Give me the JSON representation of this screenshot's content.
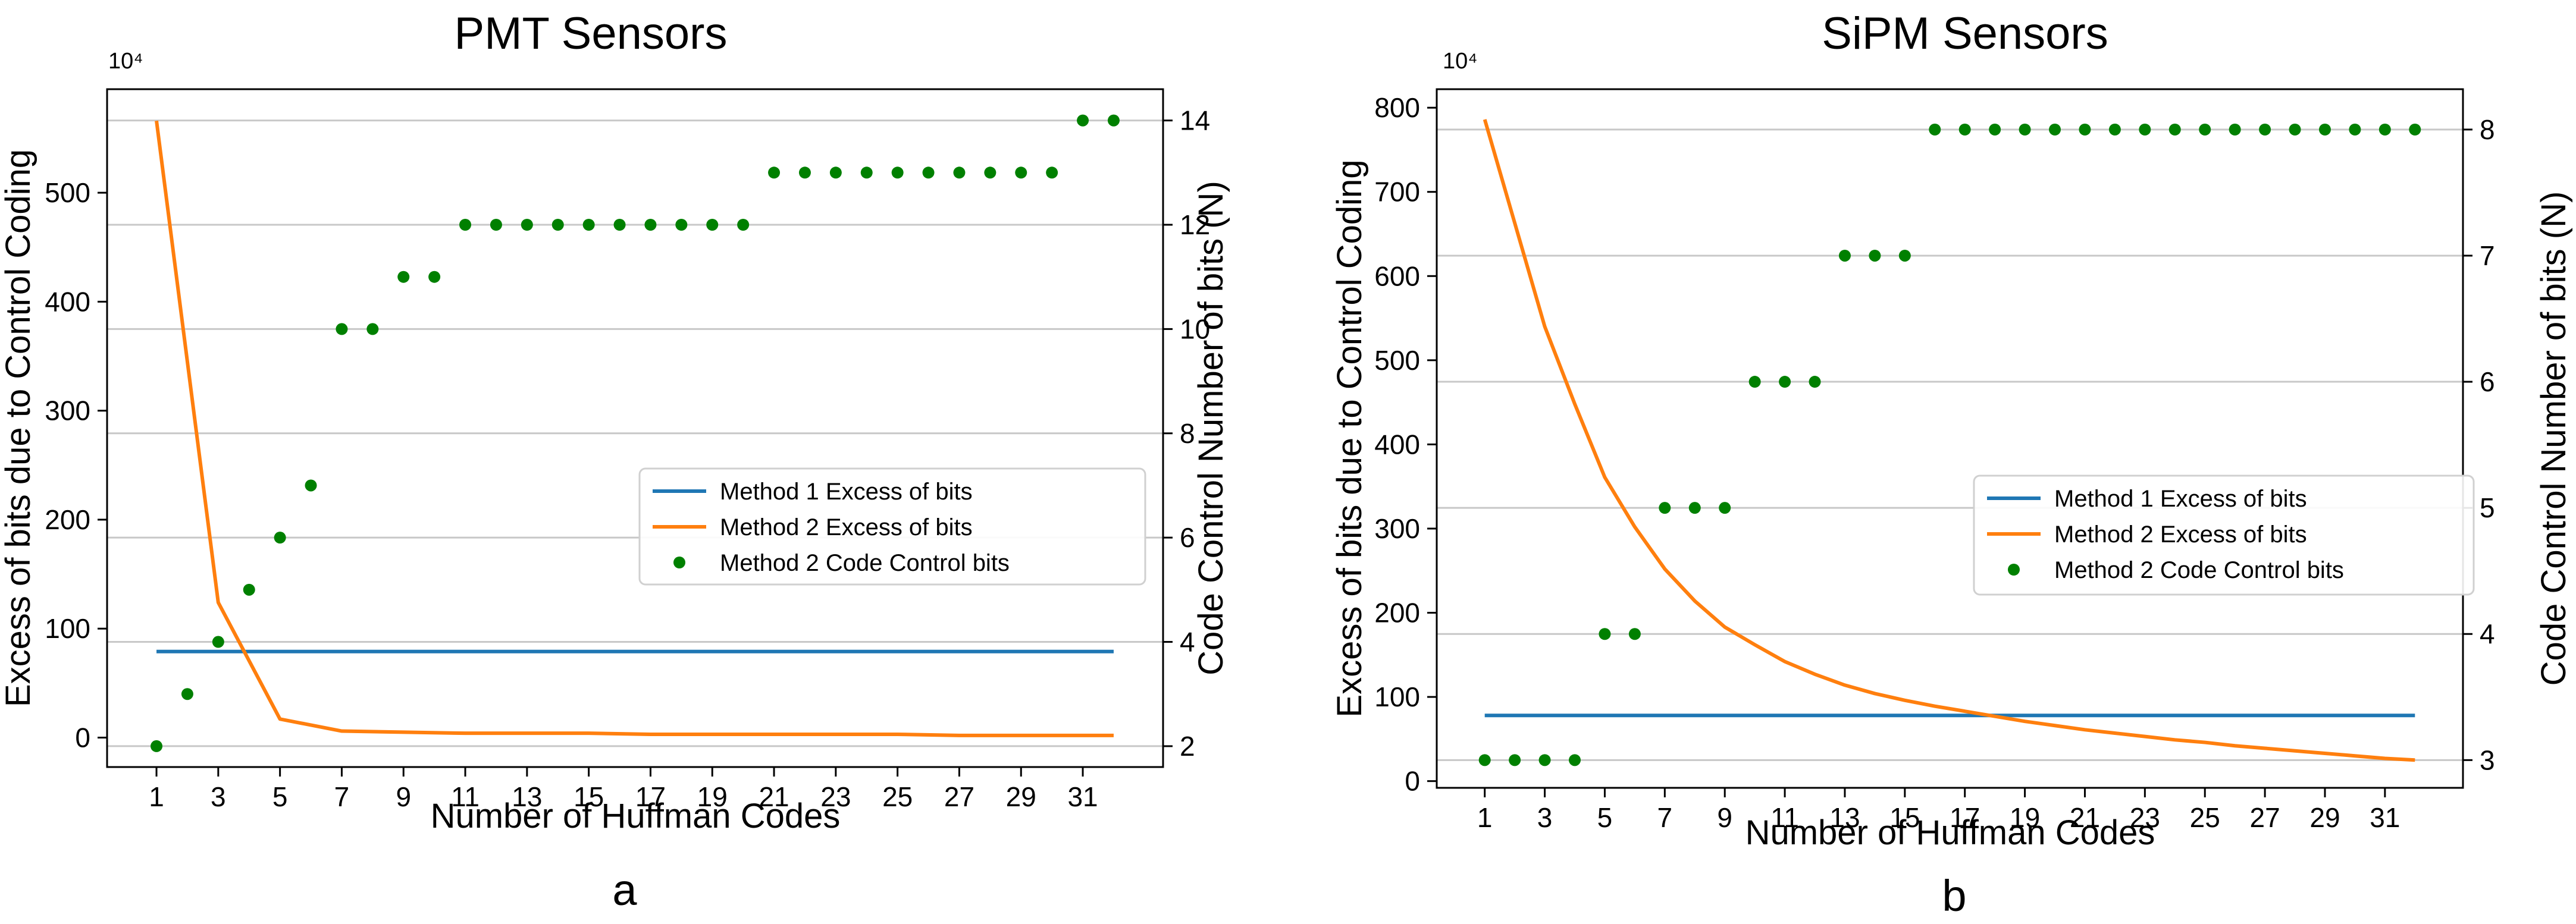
{
  "chart_data": [
    {
      "type": "line",
      "title": "PMT Sensors",
      "sublabel": "a",
      "xlabel": "Number of Huffman Codes",
      "ylabel": "Excess of bits due to Control Coding",
      "y2label": "Code Control Number of bits (N)",
      "y_multiplier": "10⁴",
      "xlim": [
        -0.6,
        33.6
      ],
      "ylim": [
        -27,
        595
      ],
      "y2lim": [
        1.6,
        14.6
      ],
      "xticks": [
        1,
        3,
        5,
        7,
        9,
        11,
        13,
        15,
        17,
        19,
        21,
        23,
        25,
        27,
        29,
        31
      ],
      "yticks": [
        0,
        100,
        200,
        300,
        400,
        500
      ],
      "y2ticks": [
        2,
        4,
        6,
        8,
        10,
        12,
        14
      ],
      "grid": "horizontal gridlines on secondary axis",
      "legend_position": "center-right",
      "series": [
        {
          "name": "Method 1 Excess of bits",
          "axis": "left",
          "style": "line",
          "color": "#1f77b4",
          "x": [
            1,
            32
          ],
          "y": [
            79,
            79
          ]
        },
        {
          "name": "Method 2 Excess of bits",
          "axis": "left",
          "style": "line",
          "color": "#ff7f0e",
          "x": [
            1,
            3,
            5,
            7,
            9,
            11,
            13,
            15,
            17,
            19,
            21,
            23,
            25,
            27,
            29,
            31,
            32
          ],
          "y": [
            566,
            124,
            17,
            6,
            5,
            4,
            4,
            4,
            3,
            3,
            3,
            3,
            3,
            2,
            2,
            2,
            2
          ]
        },
        {
          "name": "Method 2 Code Control bits",
          "axis": "right",
          "style": "scatter",
          "color": "#008000",
          "x": [
            1,
            2,
            3,
            4,
            5,
            6,
            7,
            8,
            9,
            10,
            11,
            12,
            13,
            14,
            15,
            16,
            17,
            18,
            19,
            20,
            21,
            22,
            23,
            24,
            25,
            26,
            27,
            28,
            29,
            30,
            31,
            32
          ],
          "y": [
            2,
            3,
            4,
            5,
            6,
            7,
            10,
            10,
            11,
            11,
            12,
            12,
            12,
            12,
            12,
            12,
            12,
            12,
            12,
            12,
            13,
            13,
            13,
            13,
            13,
            13,
            13,
            13,
            13,
            13,
            14,
            14
          ]
        }
      ]
    },
    {
      "type": "line",
      "title": "SiPM Sensors",
      "sublabel": "b",
      "xlabel": "Number of Huffman Codes",
      "ylabel": "Excess of bits due to Control Coding",
      "y2label": "Code Control Number of bits (N)",
      "y_multiplier": "10⁴",
      "xlim": [
        -0.6,
        33.6
      ],
      "ylim": [
        -8,
        822
      ],
      "y2lim": [
        2.78,
        8.32
      ],
      "xticks": [
        1,
        3,
        5,
        7,
        9,
        11,
        13,
        15,
        17,
        19,
        21,
        23,
        25,
        27,
        29,
        31
      ],
      "yticks": [
        0,
        100,
        200,
        300,
        400,
        500,
        600,
        700,
        800
      ],
      "y2ticks": [
        3,
        4,
        5,
        6,
        7,
        8
      ],
      "grid": "horizontal gridlines on secondary axis",
      "legend_position": "center-right",
      "series": [
        {
          "name": "Method 1 Excess of bits",
          "axis": "left",
          "style": "line",
          "color": "#1f77b4",
          "x": [
            1,
            32
          ],
          "y": [
            78,
            78
          ]
        },
        {
          "name": "Method 2 Excess of bits",
          "axis": "left",
          "style": "line",
          "color": "#ff7f0e",
          "x": [
            1,
            2,
            3,
            4,
            5,
            6,
            7,
            8,
            9,
            10,
            11,
            12,
            13,
            14,
            15,
            16,
            17,
            18,
            19,
            20,
            21,
            22,
            23,
            24,
            25,
            26,
            27,
            28,
            29,
            30,
            31,
            32
          ],
          "y": [
            786,
            663,
            540,
            448,
            361,
            302,
            252,
            214,
            183,
            162,
            142,
            127,
            114,
            104,
            96,
            89,
            83,
            77,
            71,
            66,
            61,
            57,
            53,
            49,
            46,
            42,
            39,
            36,
            33,
            30,
            27,
            25
          ]
        },
        {
          "name": "Method 2 Code Control bits",
          "axis": "right",
          "style": "scatter",
          "color": "#008000",
          "x": [
            1,
            2,
            3,
            4,
            5,
            6,
            7,
            8,
            9,
            10,
            11,
            12,
            13,
            14,
            15,
            16,
            17,
            18,
            19,
            20,
            21,
            22,
            23,
            24,
            25,
            26,
            27,
            28,
            29,
            30,
            31,
            32
          ],
          "y": [
            3,
            3,
            3,
            3,
            4,
            4,
            5,
            5,
            5,
            6,
            6,
            6,
            7,
            7,
            7,
            8,
            8,
            8,
            8,
            8,
            8,
            8,
            8,
            8,
            8,
            8,
            8,
            8,
            8,
            8,
            8,
            8
          ]
        }
      ]
    }
  ]
}
